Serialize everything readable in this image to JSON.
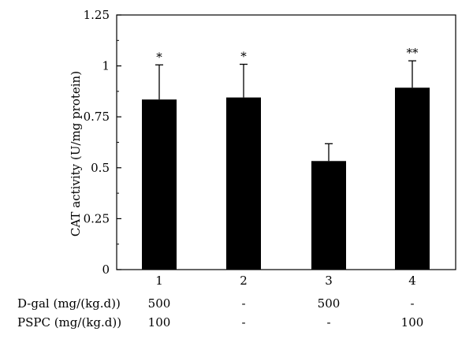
{
  "chart_data": {
    "type": "bar",
    "categories": [
      "1",
      "2",
      "3",
      "4"
    ],
    "values": [
      0.835,
      0.845,
      0.533,
      0.893
    ],
    "errors": [
      0.17,
      0.163,
      0.085,
      0.132
    ],
    "significance": [
      "*",
      "*",
      "",
      "**"
    ],
    "ylabel": "CAT activity (U/mg protein)",
    "xlabel": "",
    "ylim": [
      0,
      1.25
    ],
    "yticks": [
      "0",
      "0.25",
      "0.5",
      "0.75",
      "1",
      "1.25"
    ],
    "grid": false,
    "bar_color": "#000000"
  },
  "treatment_table": [
    {
      "label": "D-gal (mg/(kg.d))",
      "cells": [
        "500",
        "-",
        "500",
        "-"
      ]
    },
    {
      "label": "PSPC (mg/(kg.d))",
      "cells": [
        "100",
        "-",
        "-",
        "100"
      ]
    }
  ]
}
